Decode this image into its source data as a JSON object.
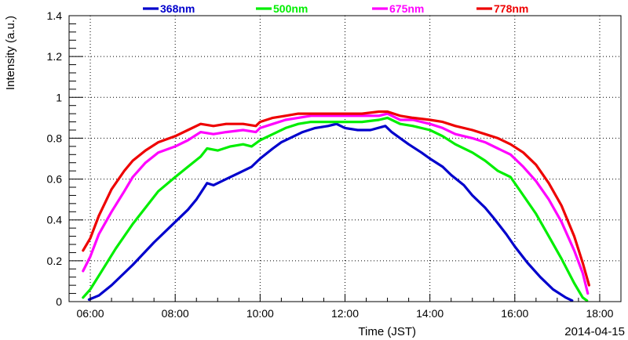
{
  "chart_data": {
    "type": "line",
    "title": "",
    "xlabel": "Time (JST)",
    "ylabel": "Intensity (a.u.)",
    "date_label": "2014-04-15",
    "xlim": [
      5.5,
      18.5
    ],
    "ylim": [
      0,
      1.4
    ],
    "x_ticks": [
      6,
      8,
      10,
      12,
      14,
      16,
      18
    ],
    "x_tick_labels": [
      "06:00",
      "08:00",
      "10:00",
      "12:00",
      "14:00",
      "16:00",
      "18:00"
    ],
    "y_ticks": [
      0,
      0.2,
      0.4,
      0.6,
      0.8,
      1,
      1.2,
      1.4
    ],
    "y_tick_labels": [
      "0",
      "0.2",
      "0.4",
      "0.6",
      "0.8",
      "1",
      "1.2",
      "1.4"
    ],
    "grid": true,
    "legend_position": "top",
    "series": [
      {
        "name": "368nm",
        "color": "#0000cc",
        "points": [
          [
            5.97,
            0.01
          ],
          [
            6.2,
            0.03
          ],
          [
            6.5,
            0.08
          ],
          [
            7.0,
            0.18
          ],
          [
            7.5,
            0.29
          ],
          [
            8.0,
            0.39
          ],
          [
            8.3,
            0.45
          ],
          [
            8.5,
            0.5
          ],
          [
            8.75,
            0.58
          ],
          [
            8.9,
            0.57
          ],
          [
            9.2,
            0.6
          ],
          [
            9.5,
            0.63
          ],
          [
            9.8,
            0.66
          ],
          [
            10.0,
            0.7
          ],
          [
            10.3,
            0.75
          ],
          [
            10.5,
            0.78
          ],
          [
            10.8,
            0.81
          ],
          [
            11.0,
            0.83
          ],
          [
            11.3,
            0.85
          ],
          [
            11.6,
            0.86
          ],
          [
            11.8,
            0.87
          ],
          [
            12.0,
            0.85
          ],
          [
            12.3,
            0.84
          ],
          [
            12.6,
            0.84
          ],
          [
            12.95,
            0.86
          ],
          [
            13.1,
            0.83
          ],
          [
            13.3,
            0.8
          ],
          [
            13.5,
            0.77
          ],
          [
            13.8,
            0.73
          ],
          [
            14.0,
            0.7
          ],
          [
            14.3,
            0.66
          ],
          [
            14.5,
            0.62
          ],
          [
            14.8,
            0.57
          ],
          [
            15.0,
            0.52
          ],
          [
            15.3,
            0.46
          ],
          [
            15.5,
            0.41
          ],
          [
            15.8,
            0.33
          ],
          [
            16.0,
            0.27
          ],
          [
            16.3,
            0.19
          ],
          [
            16.6,
            0.12
          ],
          [
            16.9,
            0.06
          ],
          [
            17.2,
            0.02
          ],
          [
            17.35,
            0.005
          ]
        ]
      },
      {
        "name": "500nm",
        "color": "#00ee00",
        "points": [
          [
            5.83,
            0.02
          ],
          [
            6.0,
            0.06
          ],
          [
            6.3,
            0.16
          ],
          [
            6.6,
            0.26
          ],
          [
            7.0,
            0.38
          ],
          [
            7.3,
            0.46
          ],
          [
            7.6,
            0.54
          ],
          [
            8.0,
            0.61
          ],
          [
            8.3,
            0.66
          ],
          [
            8.6,
            0.71
          ],
          [
            8.75,
            0.75
          ],
          [
            9.0,
            0.74
          ],
          [
            9.3,
            0.76
          ],
          [
            9.6,
            0.77
          ],
          [
            9.8,
            0.76
          ],
          [
            10.0,
            0.79
          ],
          [
            10.3,
            0.82
          ],
          [
            10.6,
            0.85
          ],
          [
            10.9,
            0.87
          ],
          [
            11.2,
            0.88
          ],
          [
            11.6,
            0.88
          ],
          [
            12.0,
            0.88
          ],
          [
            12.4,
            0.88
          ],
          [
            12.8,
            0.89
          ],
          [
            13.0,
            0.9
          ],
          [
            13.3,
            0.87
          ],
          [
            13.6,
            0.86
          ],
          [
            14.0,
            0.84
          ],
          [
            14.3,
            0.81
          ],
          [
            14.6,
            0.77
          ],
          [
            15.0,
            0.73
          ],
          [
            15.3,
            0.69
          ],
          [
            15.6,
            0.64
          ],
          [
            15.9,
            0.61
          ],
          [
            16.2,
            0.52
          ],
          [
            16.5,
            0.43
          ],
          [
            16.8,
            0.32
          ],
          [
            17.1,
            0.21
          ],
          [
            17.4,
            0.09
          ],
          [
            17.6,
            0.02
          ],
          [
            17.7,
            0.005
          ]
        ]
      },
      {
        "name": "675nm",
        "color": "#ff00ff",
        "points": [
          [
            5.83,
            0.15
          ],
          [
            6.0,
            0.22
          ],
          [
            6.2,
            0.33
          ],
          [
            6.5,
            0.44
          ],
          [
            6.8,
            0.54
          ],
          [
            7.0,
            0.61
          ],
          [
            7.3,
            0.68
          ],
          [
            7.6,
            0.73
          ],
          [
            8.0,
            0.76
          ],
          [
            8.3,
            0.79
          ],
          [
            8.6,
            0.83
          ],
          [
            8.9,
            0.82
          ],
          [
            9.2,
            0.83
          ],
          [
            9.6,
            0.84
          ],
          [
            9.9,
            0.83
          ],
          [
            10.0,
            0.85
          ],
          [
            10.3,
            0.87
          ],
          [
            10.6,
            0.89
          ],
          [
            10.9,
            0.9
          ],
          [
            11.2,
            0.91
          ],
          [
            11.6,
            0.91
          ],
          [
            12.0,
            0.91
          ],
          [
            12.4,
            0.91
          ],
          [
            12.8,
            0.91
          ],
          [
            13.0,
            0.92
          ],
          [
            13.3,
            0.89
          ],
          [
            13.6,
            0.89
          ],
          [
            14.0,
            0.87
          ],
          [
            14.3,
            0.85
          ],
          [
            14.6,
            0.82
          ],
          [
            15.0,
            0.8
          ],
          [
            15.3,
            0.78
          ],
          [
            15.6,
            0.75
          ],
          [
            15.9,
            0.72
          ],
          [
            16.2,
            0.66
          ],
          [
            16.5,
            0.59
          ],
          [
            16.8,
            0.5
          ],
          [
            17.1,
            0.39
          ],
          [
            17.4,
            0.25
          ],
          [
            17.6,
            0.14
          ],
          [
            17.72,
            0.04
          ]
        ]
      },
      {
        "name": "778nm",
        "color": "#ee0000",
        "points": [
          [
            5.83,
            0.25
          ],
          [
            6.0,
            0.31
          ],
          [
            6.2,
            0.42
          ],
          [
            6.5,
            0.55
          ],
          [
            6.8,
            0.64
          ],
          [
            7.0,
            0.69
          ],
          [
            7.3,
            0.74
          ],
          [
            7.6,
            0.78
          ],
          [
            8.0,
            0.81
          ],
          [
            8.3,
            0.84
          ],
          [
            8.6,
            0.87
          ],
          [
            8.9,
            0.86
          ],
          [
            9.2,
            0.87
          ],
          [
            9.6,
            0.87
          ],
          [
            9.9,
            0.86
          ],
          [
            10.0,
            0.88
          ],
          [
            10.3,
            0.9
          ],
          [
            10.6,
            0.91
          ],
          [
            10.9,
            0.92
          ],
          [
            11.2,
            0.92
          ],
          [
            11.6,
            0.92
          ],
          [
            12.0,
            0.92
          ],
          [
            12.4,
            0.92
          ],
          [
            12.8,
            0.93
          ],
          [
            13.0,
            0.93
          ],
          [
            13.3,
            0.91
          ],
          [
            13.6,
            0.9
          ],
          [
            14.0,
            0.89
          ],
          [
            14.3,
            0.88
          ],
          [
            14.6,
            0.86
          ],
          [
            15.0,
            0.84
          ],
          [
            15.3,
            0.82
          ],
          [
            15.6,
            0.8
          ],
          [
            15.9,
            0.77
          ],
          [
            16.2,
            0.73
          ],
          [
            16.5,
            0.67
          ],
          [
            16.8,
            0.58
          ],
          [
            17.1,
            0.47
          ],
          [
            17.4,
            0.32
          ],
          [
            17.6,
            0.19
          ],
          [
            17.75,
            0.08
          ]
        ]
      }
    ]
  }
}
